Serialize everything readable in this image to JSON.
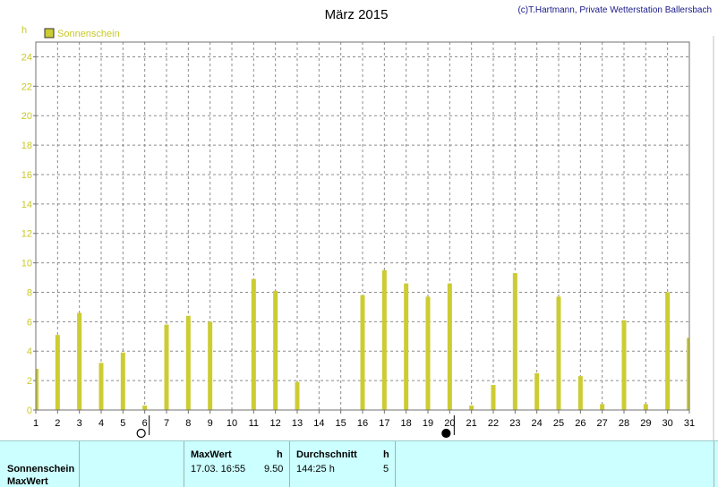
{
  "chart_data": {
    "type": "bar",
    "title": "März 2015",
    "credit": "(c)T.Hartmann, Private Wetterstation Ballersbach",
    "ylabel": "h",
    "legend": {
      "position": "top-left",
      "entries": [
        "Sonnenschein"
      ]
    },
    "grid": true,
    "ylim": [
      0,
      25
    ],
    "yticks": [
      0,
      2,
      4,
      6,
      8,
      10,
      12,
      14,
      16,
      18,
      20,
      22,
      24
    ],
    "categories": [
      "1",
      "2",
      "3",
      "4",
      "5",
      "6",
      "7",
      "8",
      "9",
      "10",
      "11",
      "12",
      "13",
      "14",
      "15",
      "16",
      "17",
      "18",
      "19",
      "20",
      "21",
      "22",
      "23",
      "24",
      "25",
      "26",
      "27",
      "28",
      "29",
      "30",
      "31"
    ],
    "series": [
      {
        "name": "Sonnenschein",
        "color": "#cccc33",
        "values": [
          2.8,
          5.1,
          6.6,
          3.2,
          3.9,
          0.3,
          5.8,
          6.4,
          6.0,
          0.0,
          8.9,
          8.1,
          1.9,
          0.0,
          0.0,
          7.8,
          9.5,
          8.6,
          7.7,
          8.6,
          0.3,
          1.7,
          9.3,
          2.5,
          7.7,
          2.3,
          0.4,
          6.1,
          0.4,
          8.0,
          4.9
        ]
      }
    ],
    "moon_phases": [
      {
        "day": 6,
        "phase": "full-moon"
      },
      {
        "day": 20,
        "phase": "new-moon"
      }
    ]
  },
  "stats": {
    "row_label_1": "Sonnenschein",
    "row_label_2": "MaxWert",
    "max_header": "MaxWert",
    "max_unit": "h",
    "max_date": "17.03.  16:55",
    "max_value": "9.50",
    "avg_header": "Durchschnitt",
    "avg_unit": "h",
    "avg_value": "144:25 h",
    "avg_count": "5"
  }
}
